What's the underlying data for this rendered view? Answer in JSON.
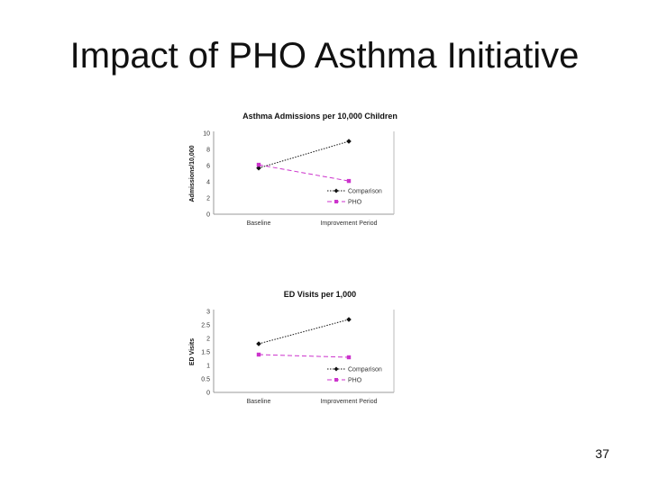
{
  "slide": {
    "title": "Impact of PHO Asthma Initiative",
    "page_number": "37"
  },
  "chart_data": [
    {
      "type": "line",
      "title": "Asthma Admissions per 10,000 Children",
      "xlabel": "",
      "ylabel": "Admissions/10,000",
      "categories": [
        "Baseline",
        "Improvement Period"
      ],
      "ylim": [
        0,
        10
      ],
      "yticks": [
        0,
        2,
        4,
        6,
        8,
        10
      ],
      "series": [
        {
          "name": "Comparison",
          "values": [
            5.7,
            9.0
          ],
          "color": "#111111",
          "marker": "diamond",
          "dash": "dotted"
        },
        {
          "name": "PHO",
          "values": [
            6.1,
            4.1
          ],
          "color": "#cc33cc",
          "marker": "square",
          "dash": "dashed"
        }
      ],
      "legend": "inside-right",
      "grid": false
    },
    {
      "type": "line",
      "title": "ED Visits per 1,000",
      "xlabel": "",
      "ylabel": "ED Visits",
      "categories": [
        "Baseline",
        "Improvement Period"
      ],
      "ylim": [
        0,
        3
      ],
      "yticks": [
        0,
        0.5,
        1,
        1.5,
        2,
        2.5,
        3
      ],
      "series": [
        {
          "name": "Comparison",
          "values": [
            1.8,
            2.7
          ],
          "color": "#111111",
          "marker": "diamond",
          "dash": "dotted"
        },
        {
          "name": "PHO",
          "values": [
            1.4,
            1.3
          ],
          "color": "#cc33cc",
          "marker": "square",
          "dash": "dashed"
        }
      ],
      "legend": "inside-right",
      "grid": false
    }
  ]
}
